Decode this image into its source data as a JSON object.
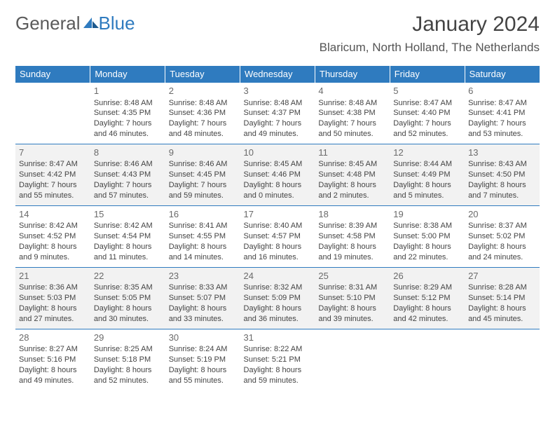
{
  "logo": {
    "text1": "General",
    "text2": "Blue"
  },
  "title": "January 2024",
  "location": "Blaricum, North Holland, The Netherlands",
  "colors": {
    "header_bg": "#2f7bbf",
    "gray_row": "#f2f2f2",
    "text": "#444444",
    "border": "#2f7bbf"
  },
  "weekdays": [
    "Sunday",
    "Monday",
    "Tuesday",
    "Wednesday",
    "Thursday",
    "Friday",
    "Saturday"
  ],
  "weeks": [
    {
      "gray": false,
      "days": [
        null,
        {
          "n": "1",
          "sr": "Sunrise: 8:48 AM",
          "ss": "Sunset: 4:35 PM",
          "d1": "Daylight: 7 hours",
          "d2": "and 46 minutes."
        },
        {
          "n": "2",
          "sr": "Sunrise: 8:48 AM",
          "ss": "Sunset: 4:36 PM",
          "d1": "Daylight: 7 hours",
          "d2": "and 48 minutes."
        },
        {
          "n": "3",
          "sr": "Sunrise: 8:48 AM",
          "ss": "Sunset: 4:37 PM",
          "d1": "Daylight: 7 hours",
          "d2": "and 49 minutes."
        },
        {
          "n": "4",
          "sr": "Sunrise: 8:48 AM",
          "ss": "Sunset: 4:38 PM",
          "d1": "Daylight: 7 hours",
          "d2": "and 50 minutes."
        },
        {
          "n": "5",
          "sr": "Sunrise: 8:47 AM",
          "ss": "Sunset: 4:40 PM",
          "d1": "Daylight: 7 hours",
          "d2": "and 52 minutes."
        },
        {
          "n": "6",
          "sr": "Sunrise: 8:47 AM",
          "ss": "Sunset: 4:41 PM",
          "d1": "Daylight: 7 hours",
          "d2": "and 53 minutes."
        }
      ]
    },
    {
      "gray": true,
      "days": [
        {
          "n": "7",
          "sr": "Sunrise: 8:47 AM",
          "ss": "Sunset: 4:42 PM",
          "d1": "Daylight: 7 hours",
          "d2": "and 55 minutes."
        },
        {
          "n": "8",
          "sr": "Sunrise: 8:46 AM",
          "ss": "Sunset: 4:43 PM",
          "d1": "Daylight: 7 hours",
          "d2": "and 57 minutes."
        },
        {
          "n": "9",
          "sr": "Sunrise: 8:46 AM",
          "ss": "Sunset: 4:45 PM",
          "d1": "Daylight: 7 hours",
          "d2": "and 59 minutes."
        },
        {
          "n": "10",
          "sr": "Sunrise: 8:45 AM",
          "ss": "Sunset: 4:46 PM",
          "d1": "Daylight: 8 hours",
          "d2": "and 0 minutes."
        },
        {
          "n": "11",
          "sr": "Sunrise: 8:45 AM",
          "ss": "Sunset: 4:48 PM",
          "d1": "Daylight: 8 hours",
          "d2": "and 2 minutes."
        },
        {
          "n": "12",
          "sr": "Sunrise: 8:44 AM",
          "ss": "Sunset: 4:49 PM",
          "d1": "Daylight: 8 hours",
          "d2": "and 5 minutes."
        },
        {
          "n": "13",
          "sr": "Sunrise: 8:43 AM",
          "ss": "Sunset: 4:50 PM",
          "d1": "Daylight: 8 hours",
          "d2": "and 7 minutes."
        }
      ]
    },
    {
      "gray": false,
      "days": [
        {
          "n": "14",
          "sr": "Sunrise: 8:42 AM",
          "ss": "Sunset: 4:52 PM",
          "d1": "Daylight: 8 hours",
          "d2": "and 9 minutes."
        },
        {
          "n": "15",
          "sr": "Sunrise: 8:42 AM",
          "ss": "Sunset: 4:54 PM",
          "d1": "Daylight: 8 hours",
          "d2": "and 11 minutes."
        },
        {
          "n": "16",
          "sr": "Sunrise: 8:41 AM",
          "ss": "Sunset: 4:55 PM",
          "d1": "Daylight: 8 hours",
          "d2": "and 14 minutes."
        },
        {
          "n": "17",
          "sr": "Sunrise: 8:40 AM",
          "ss": "Sunset: 4:57 PM",
          "d1": "Daylight: 8 hours",
          "d2": "and 16 minutes."
        },
        {
          "n": "18",
          "sr": "Sunrise: 8:39 AM",
          "ss": "Sunset: 4:58 PM",
          "d1": "Daylight: 8 hours",
          "d2": "and 19 minutes."
        },
        {
          "n": "19",
          "sr": "Sunrise: 8:38 AM",
          "ss": "Sunset: 5:00 PM",
          "d1": "Daylight: 8 hours",
          "d2": "and 22 minutes."
        },
        {
          "n": "20",
          "sr": "Sunrise: 8:37 AM",
          "ss": "Sunset: 5:02 PM",
          "d1": "Daylight: 8 hours",
          "d2": "and 24 minutes."
        }
      ]
    },
    {
      "gray": true,
      "days": [
        {
          "n": "21",
          "sr": "Sunrise: 8:36 AM",
          "ss": "Sunset: 5:03 PM",
          "d1": "Daylight: 8 hours",
          "d2": "and 27 minutes."
        },
        {
          "n": "22",
          "sr": "Sunrise: 8:35 AM",
          "ss": "Sunset: 5:05 PM",
          "d1": "Daylight: 8 hours",
          "d2": "and 30 minutes."
        },
        {
          "n": "23",
          "sr": "Sunrise: 8:33 AM",
          "ss": "Sunset: 5:07 PM",
          "d1": "Daylight: 8 hours",
          "d2": "and 33 minutes."
        },
        {
          "n": "24",
          "sr": "Sunrise: 8:32 AM",
          "ss": "Sunset: 5:09 PM",
          "d1": "Daylight: 8 hours",
          "d2": "and 36 minutes."
        },
        {
          "n": "25",
          "sr": "Sunrise: 8:31 AM",
          "ss": "Sunset: 5:10 PM",
          "d1": "Daylight: 8 hours",
          "d2": "and 39 minutes."
        },
        {
          "n": "26",
          "sr": "Sunrise: 8:29 AM",
          "ss": "Sunset: 5:12 PM",
          "d1": "Daylight: 8 hours",
          "d2": "and 42 minutes."
        },
        {
          "n": "27",
          "sr": "Sunrise: 8:28 AM",
          "ss": "Sunset: 5:14 PM",
          "d1": "Daylight: 8 hours",
          "d2": "and 45 minutes."
        }
      ]
    },
    {
      "gray": false,
      "days": [
        {
          "n": "28",
          "sr": "Sunrise: 8:27 AM",
          "ss": "Sunset: 5:16 PM",
          "d1": "Daylight: 8 hours",
          "d2": "and 49 minutes."
        },
        {
          "n": "29",
          "sr": "Sunrise: 8:25 AM",
          "ss": "Sunset: 5:18 PM",
          "d1": "Daylight: 8 hours",
          "d2": "and 52 minutes."
        },
        {
          "n": "30",
          "sr": "Sunrise: 8:24 AM",
          "ss": "Sunset: 5:19 PM",
          "d1": "Daylight: 8 hours",
          "d2": "and 55 minutes."
        },
        {
          "n": "31",
          "sr": "Sunrise: 8:22 AM",
          "ss": "Sunset: 5:21 PM",
          "d1": "Daylight: 8 hours",
          "d2": "and 59 minutes."
        },
        null,
        null,
        null
      ]
    }
  ]
}
